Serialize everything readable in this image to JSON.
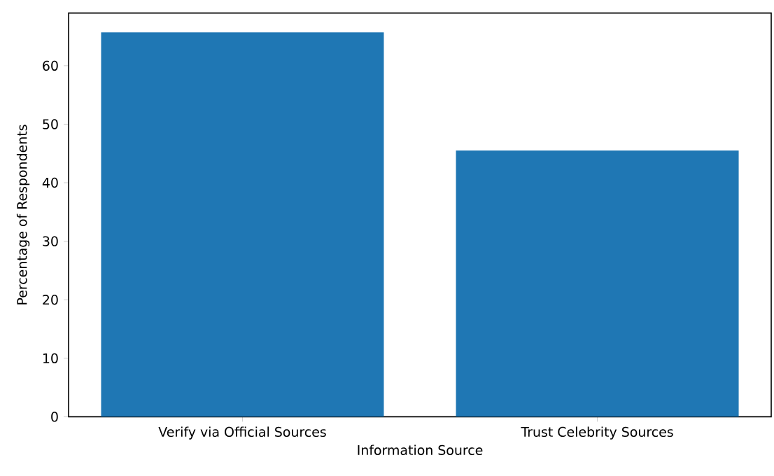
{
  "chart_data": {
    "type": "bar",
    "xlabel": "Information Source",
    "ylabel": "Percentage of Respondents",
    "categories": [
      "Verify via Official Sources",
      "Trust Celebrity Sources"
    ],
    "values": [
      65.7,
      45.5
    ],
    "color": "#1f77b4",
    "ylim": [
      0,
      69
    ],
    "yticks": [
      0,
      10,
      20,
      30,
      40,
      50,
      60
    ],
    "grid": false
  }
}
